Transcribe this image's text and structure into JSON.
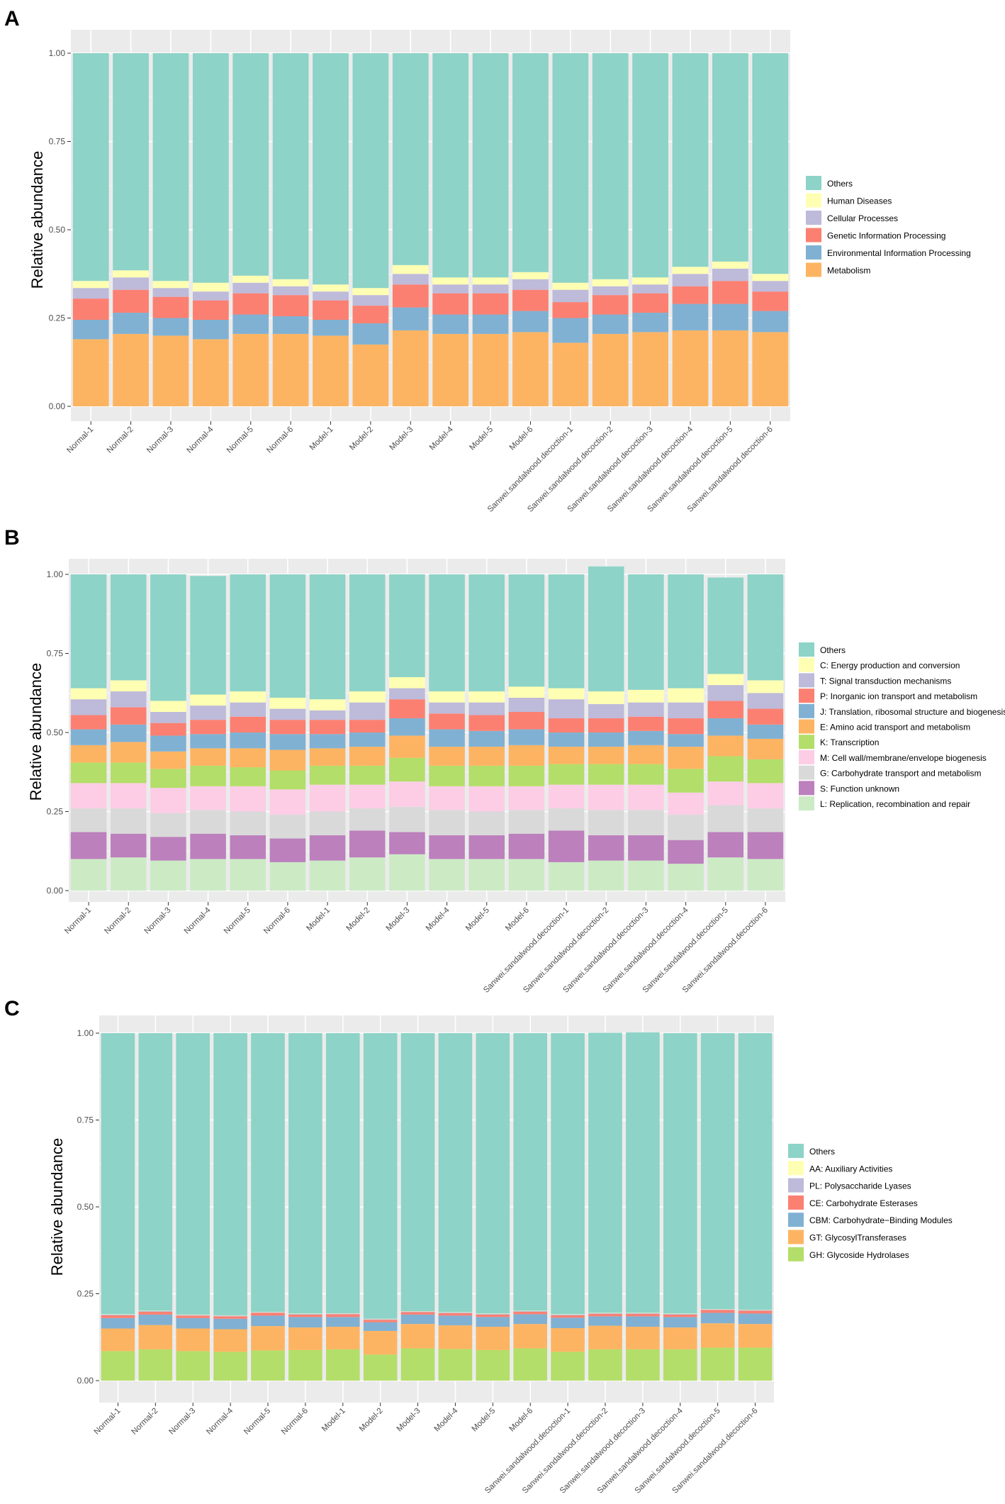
{
  "chart_data": [
    {
      "panel": "A",
      "type": "bar",
      "stacked": true,
      "ylabel": "Relative abundance",
      "xlabel": "",
      "ylim": [
        0,
        1
      ],
      "yticks": [
        "0.00",
        "0.25",
        "0.50",
        "0.75",
        "1.00"
      ],
      "legend_position": "right",
      "categories": [
        "Normal-1",
        "Normal-2",
        "Normal-3",
        "Normal-4",
        "Normal-5",
        "Normal-6",
        "Model-1",
        "Model-2",
        "Model-3",
        "Model-4",
        "Model-5",
        "Model-6",
        "Sanwei.sandalwood.decoction-1",
        "Sanwei.sandalwood.decoction-2",
        "Sanwei.sandalwood.decoction-3",
        "Sanwei.sandalwood.decoction-4",
        "Sanwei.sandalwood.decoction-5",
        "Sanwei.sandalwood.decoction-6"
      ],
      "legend": [
        "Others",
        "Human Diseases",
        "Cellular Processes",
        "Genetic Information Processing",
        "Environmental Information Processing",
        "Metabolism"
      ],
      "series": [
        {
          "name": "Metabolism",
          "color": "#FDB462",
          "values": [
            0.19,
            0.205,
            0.2,
            0.19,
            0.205,
            0.205,
            0.2,
            0.175,
            0.215,
            0.205,
            0.205,
            0.21,
            0.18,
            0.205,
            0.21,
            0.215,
            0.215,
            0.21
          ]
        },
        {
          "name": "Environmental Information Processing",
          "color": "#80B1D3",
          "values": [
            0.055,
            0.06,
            0.05,
            0.055,
            0.055,
            0.05,
            0.045,
            0.06,
            0.065,
            0.055,
            0.055,
            0.06,
            0.07,
            0.055,
            0.055,
            0.075,
            0.075,
            0.06
          ]
        },
        {
          "name": "Genetic Information Processing",
          "color": "#FB8072",
          "values": [
            0.06,
            0.065,
            0.06,
            0.055,
            0.06,
            0.06,
            0.055,
            0.05,
            0.065,
            0.06,
            0.06,
            0.06,
            0.045,
            0.055,
            0.055,
            0.05,
            0.065,
            0.055
          ]
        },
        {
          "name": "Cellular Processes",
          "color": "#BEBADA",
          "values": [
            0.03,
            0.035,
            0.025,
            0.025,
            0.03,
            0.025,
            0.025,
            0.03,
            0.03,
            0.025,
            0.025,
            0.03,
            0.035,
            0.025,
            0.025,
            0.035,
            0.035,
            0.03
          ]
        },
        {
          "name": "Human Diseases",
          "color": "#FFFFB3",
          "values": [
            0.02,
            0.02,
            0.02,
            0.025,
            0.02,
            0.02,
            0.02,
            0.02,
            0.025,
            0.02,
            0.02,
            0.02,
            0.02,
            0.02,
            0.02,
            0.02,
            0.02,
            0.02
          ]
        },
        {
          "name": "Others",
          "color": "#8DD3C7",
          "values": [
            0.645,
            0.615,
            0.645,
            0.65,
            0.63,
            0.64,
            0.655,
            0.665,
            0.6,
            0.635,
            0.635,
            0.62,
            0.65,
            0.64,
            0.635,
            0.605,
            0.59,
            0.625
          ]
        }
      ]
    },
    {
      "panel": "B",
      "type": "bar",
      "stacked": true,
      "ylabel": "Relative abundance",
      "xlabel": "",
      "ylim": [
        0,
        1
      ],
      "yticks": [
        "0.00",
        "0.25",
        "0.50",
        "0.75",
        "1.00"
      ],
      "legend_position": "right",
      "categories": [
        "Normal-1",
        "Normal-2",
        "Normal-3",
        "Normal-4",
        "Normal-5",
        "Normal-6",
        "Model-1",
        "Model-2",
        "Model-3",
        "Model-4",
        "Model-5",
        "Model-6",
        "Sanwei.sandalwood.decoction-1",
        "Sanwei.sandalwood.decoction-2",
        "Sanwei.sandalwood.decoction-3",
        "Sanwei.sandalwood.decoction-4",
        "Sanwei.sandalwood.decoction-5",
        "Sanwei.sandalwood.decoction-6"
      ],
      "legend": [
        "Others",
        "C: Energy production and conversion",
        "T: Signal transduction mechanisms",
        "P: Inorganic ion transport and metabolism",
        "J: Translation, ribosomal structure and biogenesis",
        "E: Amino acid transport and metabolism",
        "K: Transcription",
        "M: Cell wall/membrane/envelope biogenesis",
        "G: Carbohydrate transport and metabolism",
        "S: Function unknown",
        "L: Replication, recombination and repair"
      ],
      "series": [
        {
          "name": "L: Replication, recombination and repair",
          "color": "#CCEBC5",
          "values": [
            0.1,
            0.105,
            0.095,
            0.1,
            0.1,
            0.09,
            0.095,
            0.105,
            0.115,
            0.1,
            0.1,
            0.1,
            0.09,
            0.095,
            0.095,
            0.085,
            0.105,
            0.1
          ]
        },
        {
          "name": "S: Function unknown",
          "color": "#BC80BD",
          "values": [
            0.085,
            0.075,
            0.075,
            0.08,
            0.075,
            0.075,
            0.08,
            0.085,
            0.07,
            0.075,
            0.075,
            0.08,
            0.1,
            0.08,
            0.08,
            0.075,
            0.08,
            0.085
          ]
        },
        {
          "name": "G: Carbohydrate transport and metabolism",
          "color": "#D9D9D9",
          "values": [
            0.075,
            0.08,
            0.075,
            0.075,
            0.075,
            0.075,
            0.075,
            0.07,
            0.08,
            0.08,
            0.075,
            0.075,
            0.07,
            0.08,
            0.08,
            0.08,
            0.085,
            0.075
          ]
        },
        {
          "name": "M: Cell wall/membrane/envelope biogenesis",
          "color": "#FCCDE5",
          "values": [
            0.08,
            0.08,
            0.08,
            0.075,
            0.08,
            0.08,
            0.085,
            0.075,
            0.08,
            0.075,
            0.08,
            0.075,
            0.075,
            0.08,
            0.08,
            0.07,
            0.075,
            0.08
          ]
        },
        {
          "name": "K: Transcription",
          "color": "#B3DE69",
          "values": [
            0.065,
            0.065,
            0.06,
            0.065,
            0.06,
            0.06,
            0.06,
            0.06,
            0.075,
            0.065,
            0.065,
            0.065,
            0.065,
            0.065,
            0.065,
            0.075,
            0.08,
            0.075
          ]
        },
        {
          "name": "E: Amino acid transport and metabolism",
          "color": "#FDB462",
          "values": [
            0.055,
            0.065,
            0.055,
            0.055,
            0.06,
            0.065,
            0.055,
            0.06,
            0.07,
            0.06,
            0.06,
            0.065,
            0.055,
            0.055,
            0.06,
            0.07,
            0.065,
            0.065
          ]
        },
        {
          "name": "J: Translation, ribosomal structure and biogenesis",
          "color": "#80B1D3",
          "values": [
            0.05,
            0.055,
            0.05,
            0.045,
            0.05,
            0.05,
            0.045,
            0.045,
            0.055,
            0.055,
            0.05,
            0.05,
            0.045,
            0.045,
            0.045,
            0.04,
            0.055,
            0.045
          ]
        },
        {
          "name": "P: Inorganic ion transport and metabolism",
          "color": "#FB8072",
          "values": [
            0.045,
            0.055,
            0.04,
            0.045,
            0.05,
            0.045,
            0.045,
            0.04,
            0.06,
            0.05,
            0.05,
            0.055,
            0.045,
            0.045,
            0.045,
            0.05,
            0.055,
            0.05
          ]
        },
        {
          "name": "T: Signal transduction mechanisms",
          "color": "#BEBADA",
          "values": [
            0.05,
            0.05,
            0.035,
            0.045,
            0.045,
            0.035,
            0.03,
            0.055,
            0.035,
            0.035,
            0.04,
            0.045,
            0.06,
            0.045,
            0.045,
            0.05,
            0.05,
            0.05
          ]
        },
        {
          "name": "C: Energy production and conversion",
          "color": "#FFFFB3",
          "values": [
            0.035,
            0.035,
            0.035,
            0.035,
            0.035,
            0.035,
            0.035,
            0.035,
            0.035,
            0.035,
            0.035,
            0.035,
            0.035,
            0.04,
            0.04,
            0.045,
            0.035,
            0.04
          ]
        },
        {
          "name": "Others",
          "color": "#8DD3C7",
          "values": [
            0.36,
            0.335,
            0.4,
            0.375,
            0.37,
            0.39,
            0.395,
            0.37,
            0.325,
            0.37,
            0.37,
            0.355,
            0.36,
            0.395,
            0.365,
            0.36,
            0.305,
            0.335
          ]
        }
      ]
    },
    {
      "panel": "C",
      "type": "bar",
      "stacked": true,
      "ylabel": "Relative abundance",
      "xlabel": "",
      "ylim": [
        0,
        1
      ],
      "yticks": [
        "0.00",
        "0.25",
        "0.50",
        "0.75",
        "1.00"
      ],
      "legend_position": "right",
      "categories": [
        "Normal-1",
        "Normal-2",
        "Normal-3",
        "Normal-4",
        "Normal-5",
        "Normal-6",
        "Model-1",
        "Model-2",
        "Model-3",
        "Model-4",
        "Model-5",
        "Model-6",
        "Sanwei.sandalwood.decoction-1",
        "Sanwei.sandalwood.decoction-2",
        "Sanwei.sandalwood.decoction-3",
        "Sanwei.sandalwood.decoction-4",
        "Sanwei.sandalwood.decoction-5",
        "Sanwei.sandalwood.decoction-6"
      ],
      "legend": [
        "Others",
        "AA: Auxiliary Activities",
        "PL: Polysaccharide Lyases",
        "CE: Carbohydrate Esterases",
        "CBM: Carbohydrate−Binding Modules",
        "GT: GlycosylTransferases",
        "GH: Glycoside Hydrolases"
      ],
      "series": [
        {
          "name": "GH: Glycoside Hydrolases",
          "color": "#B3DE69",
          "values": [
            0.085,
            0.09,
            0.085,
            0.083,
            0.087,
            0.088,
            0.09,
            0.075,
            0.093,
            0.091,
            0.088,
            0.093,
            0.083,
            0.09,
            0.09,
            0.09,
            0.095,
            0.095
          ]
        },
        {
          "name": "GT: GlycosylTransferases",
          "color": "#FDB462",
          "values": [
            0.065,
            0.07,
            0.065,
            0.065,
            0.07,
            0.065,
            0.065,
            0.068,
            0.07,
            0.068,
            0.067,
            0.07,
            0.068,
            0.068,
            0.065,
            0.063,
            0.07,
            0.068
          ]
        },
        {
          "name": "CBM: Carbohydrate−Binding Modules",
          "color": "#80B1D3",
          "values": [
            0.03,
            0.03,
            0.03,
            0.03,
            0.03,
            0.03,
            0.028,
            0.025,
            0.027,
            0.028,
            0.028,
            0.028,
            0.03,
            0.027,
            0.03,
            0.03,
            0.03,
            0.03
          ]
        },
        {
          "name": "CE: Carbohydrate Esterases",
          "color": "#FB8072",
          "values": [
            0.008,
            0.008,
            0.007,
            0.007,
            0.008,
            0.007,
            0.008,
            0.007,
            0.007,
            0.007,
            0.007,
            0.007,
            0.007,
            0.007,
            0.007,
            0.007,
            0.008,
            0.008
          ]
        },
        {
          "name": "PL: Polysaccharide Lyases",
          "color": "#BEBADA",
          "values": [
            0.002,
            0.002,
            0.002,
            0.002,
            0.002,
            0.002,
            0.002,
            0.002,
            0.002,
            0.002,
            0.002,
            0.002,
            0.002,
            0.002,
            0.002,
            0.002,
            0.002,
            0.002
          ]
        },
        {
          "name": "AA: Auxiliary Activities",
          "color": "#FFFFB3",
          "values": [
            0.001,
            0.001,
            0.001,
            0.001,
            0.001,
            0.001,
            0.001,
            0.001,
            0.001,
            0.001,
            0.001,
            0.001,
            0.001,
            0.001,
            0.001,
            0.001,
            0.001,
            0.001
          ]
        },
        {
          "name": "Others",
          "color": "#8DD3C7",
          "values": [
            0.809,
            0.799,
            0.81,
            0.812,
            0.802,
            0.807,
            0.806,
            0.822,
            0.8,
            0.803,
            0.807,
            0.799,
            0.809,
            0.806,
            0.807,
            0.807,
            0.794,
            0.796
          ]
        }
      ]
    }
  ]
}
